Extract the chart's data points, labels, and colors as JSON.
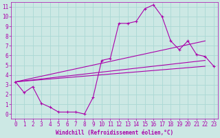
{
  "xlabel": "Windchill (Refroidissement éolien,°C)",
  "bg_color": "#cce8e4",
  "grid_color": "#aad8d4",
  "line_color": "#aa00aa",
  "xlim": [
    -0.5,
    23.5
  ],
  "ylim": [
    -0.5,
    11.5
  ],
  "xticks": [
    0,
    1,
    2,
    3,
    4,
    5,
    6,
    7,
    8,
    9,
    10,
    11,
    12,
    13,
    14,
    15,
    16,
    17,
    18,
    19,
    20,
    21,
    22,
    23
  ],
  "yticks": [
    0,
    1,
    2,
    3,
    4,
    5,
    6,
    7,
    8,
    9,
    10,
    11
  ],
  "curve1_x": [
    0,
    1,
    2,
    3,
    4,
    5,
    6,
    7,
    8,
    9,
    10,
    11,
    12,
    13,
    14,
    15,
    16,
    17,
    18,
    19,
    20,
    21,
    22,
    23
  ],
  "curve1_y": [
    3.3,
    2.2,
    2.8,
    1.1,
    0.7,
    0.2,
    0.2,
    0.2,
    0.0,
    1.7,
    5.5,
    5.7,
    9.3,
    9.3,
    9.5,
    10.8,
    11.2,
    10.0,
    7.5,
    6.6,
    7.5,
    6.1,
    5.9,
    4.9
  ],
  "line2_x": [
    0,
    22
  ],
  "line2_y": [
    3.3,
    4.9
  ],
  "line3_x": [
    0,
    22
  ],
  "line3_y": [
    3.3,
    5.5
  ],
  "line4_x": [
    0,
    22
  ],
  "line4_y": [
    3.3,
    7.5
  ],
  "tick_fontsize": 5.5,
  "xlabel_fontsize": 5.5
}
